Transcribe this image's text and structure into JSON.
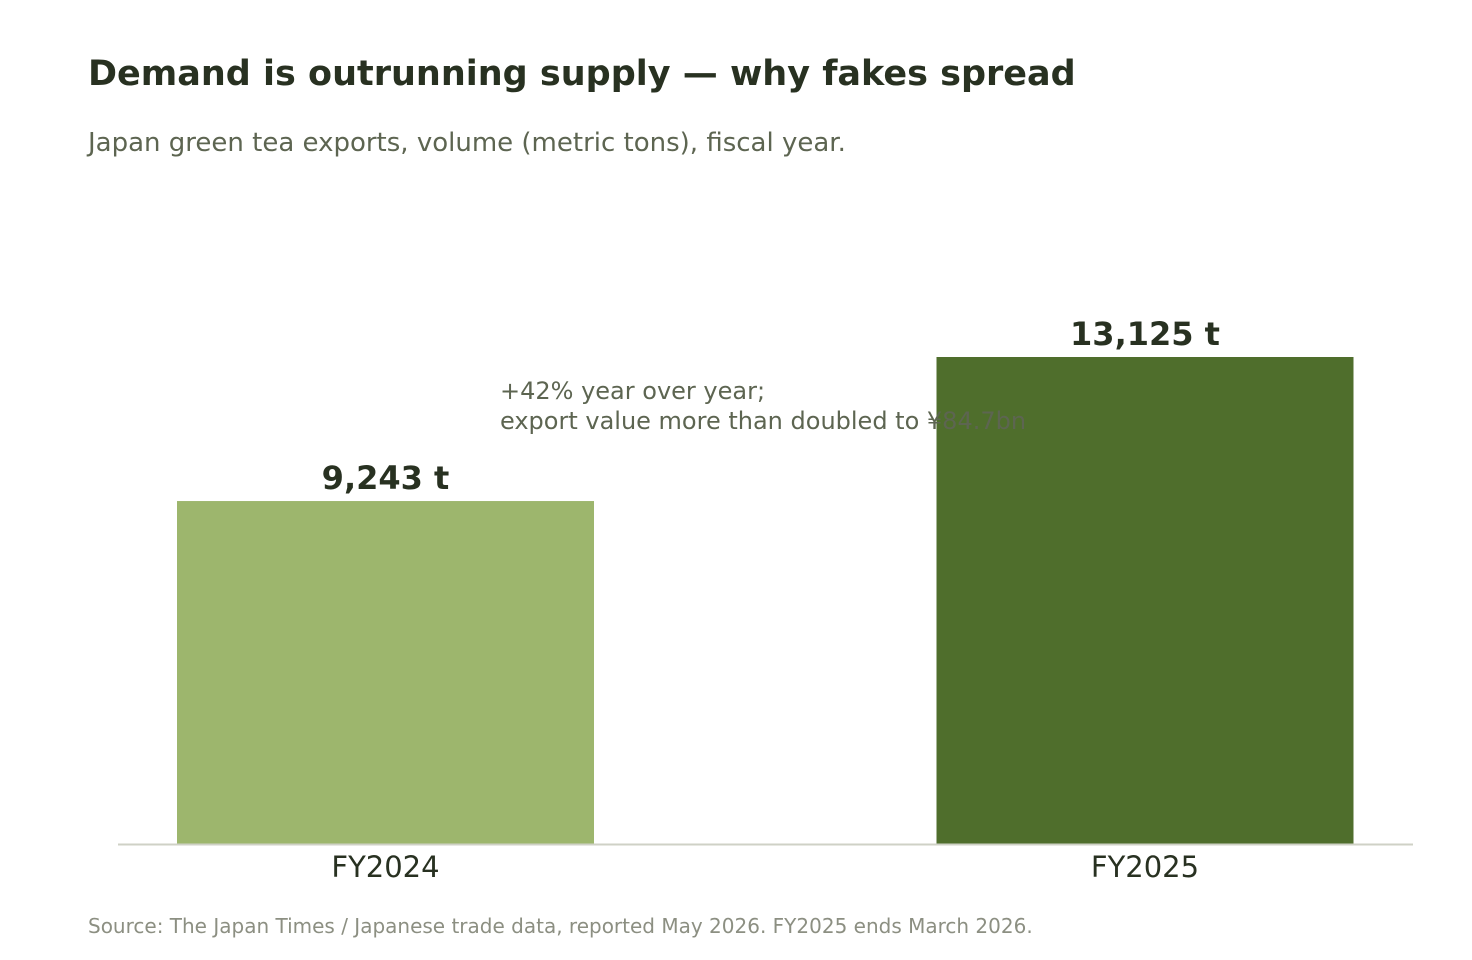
{
  "title": "Demand is outrunning supply — why fakes spread",
  "subtitle": "Japan green tea exports, volume (metric tons), fiscal year.",
  "source": "Source: The Japan Times / Japanese trade data, reported May 2026. FY2025 ends March 2026.",
  "chart_data": {
    "type": "bar",
    "categories": [
      "FY2024",
      "FY2025"
    ],
    "values": [
      9243,
      13125
    ],
    "value_labels": [
      "9,243 t",
      "13,125 t"
    ],
    "colors": [
      "#9db66d",
      "#4f6e2c"
    ],
    "ylim": [
      0,
      13125
    ],
    "grid": false,
    "legend": "none",
    "annotation": [
      "+42% year over year;",
      "export value more than doubled to ¥84.7bn"
    ]
  },
  "colors": {
    "axis": "#cfd1c6",
    "text_dark": "#283121",
    "text_muted": "#5d6551"
  }
}
